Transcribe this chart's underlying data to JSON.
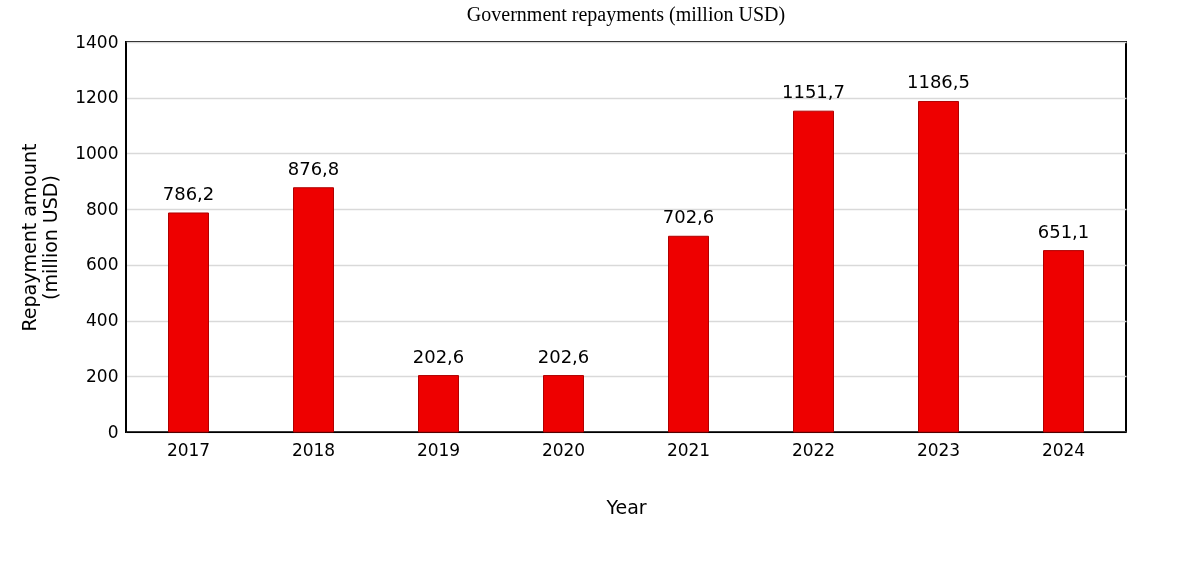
{
  "chart_data": {
    "type": "bar",
    "title": "Government repayments (million USD)",
    "xlabel": "Year",
    "ylabel": "Repayment amount (million USD)",
    "categories": [
      "2017",
      "2018",
      "2019",
      "2020",
      "2021",
      "2022",
      "2023",
      "2024"
    ],
    "values": [
      786.2,
      876.8,
      202.6,
      202.6,
      702.6,
      1151.7,
      1186.5,
      651.1
    ],
    "value_labels": [
      "786,2",
      "876,8",
      "202,6",
      "202,6",
      "702,6",
      "1151,7",
      "1186,5",
      "651,1"
    ],
    "color": "#ee0000",
    "ylim": [
      0,
      1400
    ],
    "yticks": [
      0,
      200,
      400,
      600,
      800,
      1000,
      1200,
      1400
    ],
    "grid": "y"
  }
}
